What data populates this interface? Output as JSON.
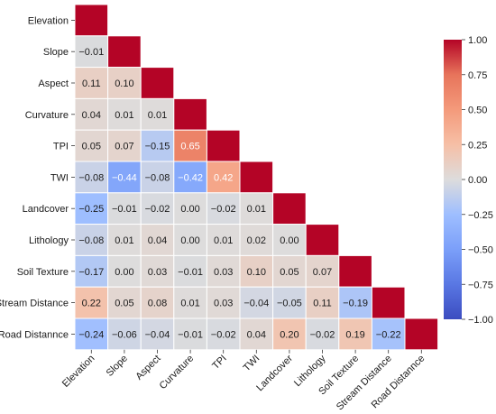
{
  "chart_data": {
    "type": "heatmap",
    "title": "",
    "xlabel": "",
    "ylabel": "",
    "triangle": "lower",
    "variables": [
      "Elevation",
      "Slope",
      "Aspect",
      "Curvature",
      "TPI",
      "TWI",
      "Landcover",
      "Lithology",
      "Soil Texture",
      "Stream Distance",
      "Road Distannce"
    ],
    "values": [
      [
        1.0
      ],
      [
        -0.01,
        1.0
      ],
      [
        0.11,
        0.1,
        1.0
      ],
      [
        0.04,
        0.01,
        0.01,
        1.0
      ],
      [
        0.05,
        0.07,
        -0.15,
        0.65,
        1.0
      ],
      [
        -0.08,
        -0.44,
        -0.08,
        -0.42,
        0.42,
        1.0
      ],
      [
        -0.25,
        -0.01,
        -0.02,
        0.0,
        -0.02,
        0.01,
        1.0
      ],
      [
        -0.08,
        0.01,
        0.04,
        0.0,
        0.01,
        0.02,
        0.0,
        1.0
      ],
      [
        -0.17,
        0.0,
        0.03,
        -0.01,
        0.03,
        0.1,
        0.05,
        0.07,
        1.0
      ],
      [
        0.22,
        0.05,
        0.08,
        0.01,
        0.03,
        -0.04,
        -0.05,
        0.11,
        -0.19,
        1.0
      ],
      [
        -0.24,
        -0.06,
        -0.04,
        -0.01,
        -0.02,
        0.04,
        0.2,
        -0.02,
        0.19,
        -0.22,
        1.0
      ]
    ],
    "colorbar": {
      "min": -1.0,
      "max": 1.0,
      "ticks": [
        "1.00",
        "0.75",
        "0.50",
        "0.25",
        "0.00",
        "-0.25",
        "-0.50",
        "-0.75",
        "-1.00"
      ],
      "colormap": "coolwarm",
      "stops": [
        "#3b4cc0",
        "#dddddd",
        "#b40426"
      ]
    },
    "grid": false
  }
}
